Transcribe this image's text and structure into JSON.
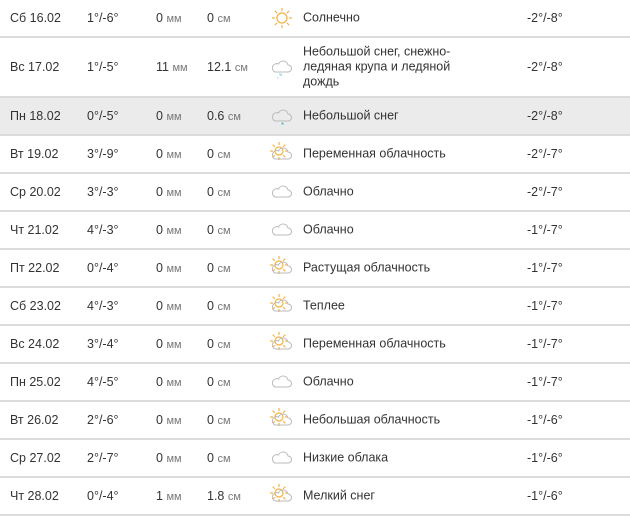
{
  "colors": {
    "highlight": "#ebebeb",
    "sun": "#f5b041",
    "snow": "#3bb3c3"
  },
  "rows": [
    {
      "date": "Сб 16.02",
      "temp": "1°/-6°",
      "precip": "0",
      "precip_unit": "мм",
      "snow": "0",
      "snow_unit": "см",
      "icon": "sun",
      "text": "Солнечно",
      "night": "-2°/-8°"
    },
    {
      "date": "Вс 17.02",
      "temp": "1°/-5°",
      "precip": "11",
      "precip_unit": "мм",
      "snow": "12.1",
      "snow_unit": "см",
      "icon": "cloud-sleet",
      "text": "Небольшой снег, снежно-ледяная крупа и ледяной дождь",
      "night": "-2°/-8°"
    },
    {
      "date": "Пн 18.02",
      "temp": "0°/-5°",
      "precip": "0",
      "precip_unit": "мм",
      "snow": "0.6",
      "snow_unit": "см",
      "icon": "cloud-snow",
      "text": "Небольшой снег",
      "night": "-2°/-8°",
      "highlight": true
    },
    {
      "date": "Вт 19.02",
      "temp": "3°/-9°",
      "precip": "0",
      "precip_unit": "мм",
      "snow": "0",
      "snow_unit": "см",
      "icon": "sun-cloud",
      "text": "Переменная облачность",
      "night": "-2°/-7°"
    },
    {
      "date": "Ср 20.02",
      "temp": "3°/-3°",
      "precip": "0",
      "precip_unit": "мм",
      "snow": "0",
      "snow_unit": "см",
      "icon": "cloud",
      "text": "Облачно",
      "night": "-2°/-7°"
    },
    {
      "date": "Чт 21.02",
      "temp": "4°/-3°",
      "precip": "0",
      "precip_unit": "мм",
      "snow": "0",
      "snow_unit": "см",
      "icon": "cloud",
      "text": "Облачно",
      "night": "-1°/-7°"
    },
    {
      "date": "Пт 22.02",
      "temp": "0°/-4°",
      "precip": "0",
      "precip_unit": "мм",
      "snow": "0",
      "snow_unit": "см",
      "icon": "sun-cloud",
      "text": "Растущая облачность",
      "night": "-1°/-7°"
    },
    {
      "date": "Сб 23.02",
      "temp": "4°/-3°",
      "precip": "0",
      "precip_unit": "мм",
      "snow": "0",
      "snow_unit": "см",
      "icon": "sun-cloud",
      "text": "Теплее",
      "night": "-1°/-7°"
    },
    {
      "date": "Вс 24.02",
      "temp": "3°/-4°",
      "precip": "0",
      "precip_unit": "мм",
      "snow": "0",
      "snow_unit": "см",
      "icon": "sun-cloud",
      "text": "Переменная облачность",
      "night": "-1°/-7°"
    },
    {
      "date": "Пн 25.02",
      "temp": "4°/-5°",
      "precip": "0",
      "precip_unit": "мм",
      "snow": "0",
      "snow_unit": "см",
      "icon": "cloud",
      "text": "Облачно",
      "night": "-1°/-7°"
    },
    {
      "date": "Вт 26.02",
      "temp": "2°/-6°",
      "precip": "0",
      "precip_unit": "мм",
      "snow": "0",
      "snow_unit": "см",
      "icon": "sun-cloud",
      "text": "Небольшая облачность",
      "night": "-1°/-6°"
    },
    {
      "date": "Ср 27.02",
      "temp": "2°/-7°",
      "precip": "0",
      "precip_unit": "мм",
      "snow": "0",
      "snow_unit": "см",
      "icon": "cloud",
      "text": "Низкие облака",
      "night": "-1°/-6°"
    },
    {
      "date": "Чт 28.02",
      "temp": "0°/-4°",
      "precip": "1",
      "precip_unit": "мм",
      "snow": "1.8",
      "snow_unit": "см",
      "icon": "sun-cloud",
      "text": "Мелкий снег",
      "night": "-1°/-6°"
    }
  ]
}
